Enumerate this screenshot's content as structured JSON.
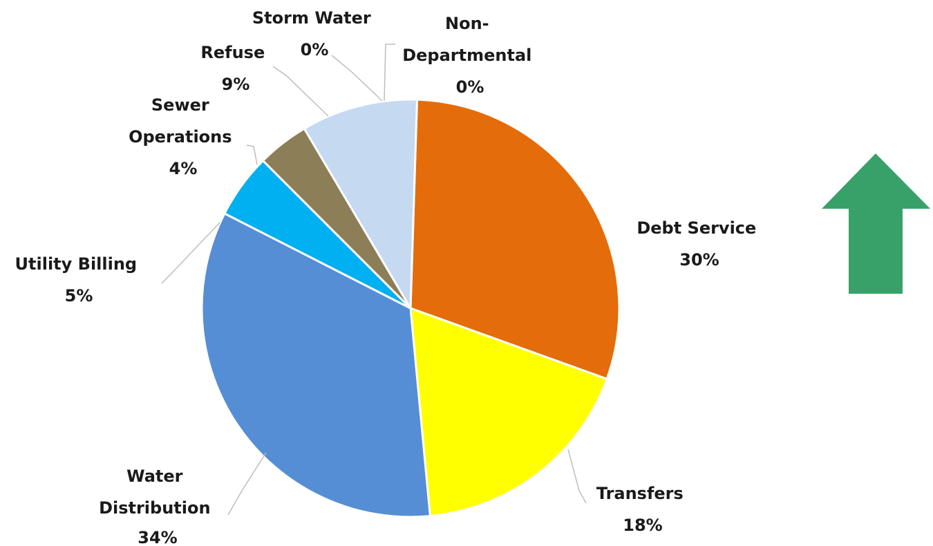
{
  "chart_data": {
    "type": "pie",
    "slices": [
      {
        "label": "Non-Departmental",
        "value": 0,
        "pct_label": "0%",
        "color": "#5b9bd5"
      },
      {
        "label": "Debt Service",
        "value": 30,
        "pct_label": "30%",
        "color": "#e46c0a"
      },
      {
        "label": "Transfers",
        "value": 18,
        "pct_label": "18%",
        "color": "#ffff00"
      },
      {
        "label": "Water Distribution",
        "value": 34,
        "pct_label": "34%",
        "color": "#558ed5"
      },
      {
        "label": "Utility Billing",
        "value": 5,
        "pct_label": "5%",
        "color": "#00b0f0"
      },
      {
        "label": "Sewer Operations",
        "value": 4,
        "pct_label": "4%",
        "color": "#8c7e57"
      },
      {
        "label": "Refuse",
        "value": 9,
        "pct_label": "9%",
        "color": "#c5d9f1"
      },
      {
        "label": "Storm Water",
        "value": 0,
        "pct_label": "0%",
        "color": "#9bbb59"
      }
    ]
  },
  "indicator": {
    "icon": "up-arrow-icon",
    "color": "#38a169"
  }
}
